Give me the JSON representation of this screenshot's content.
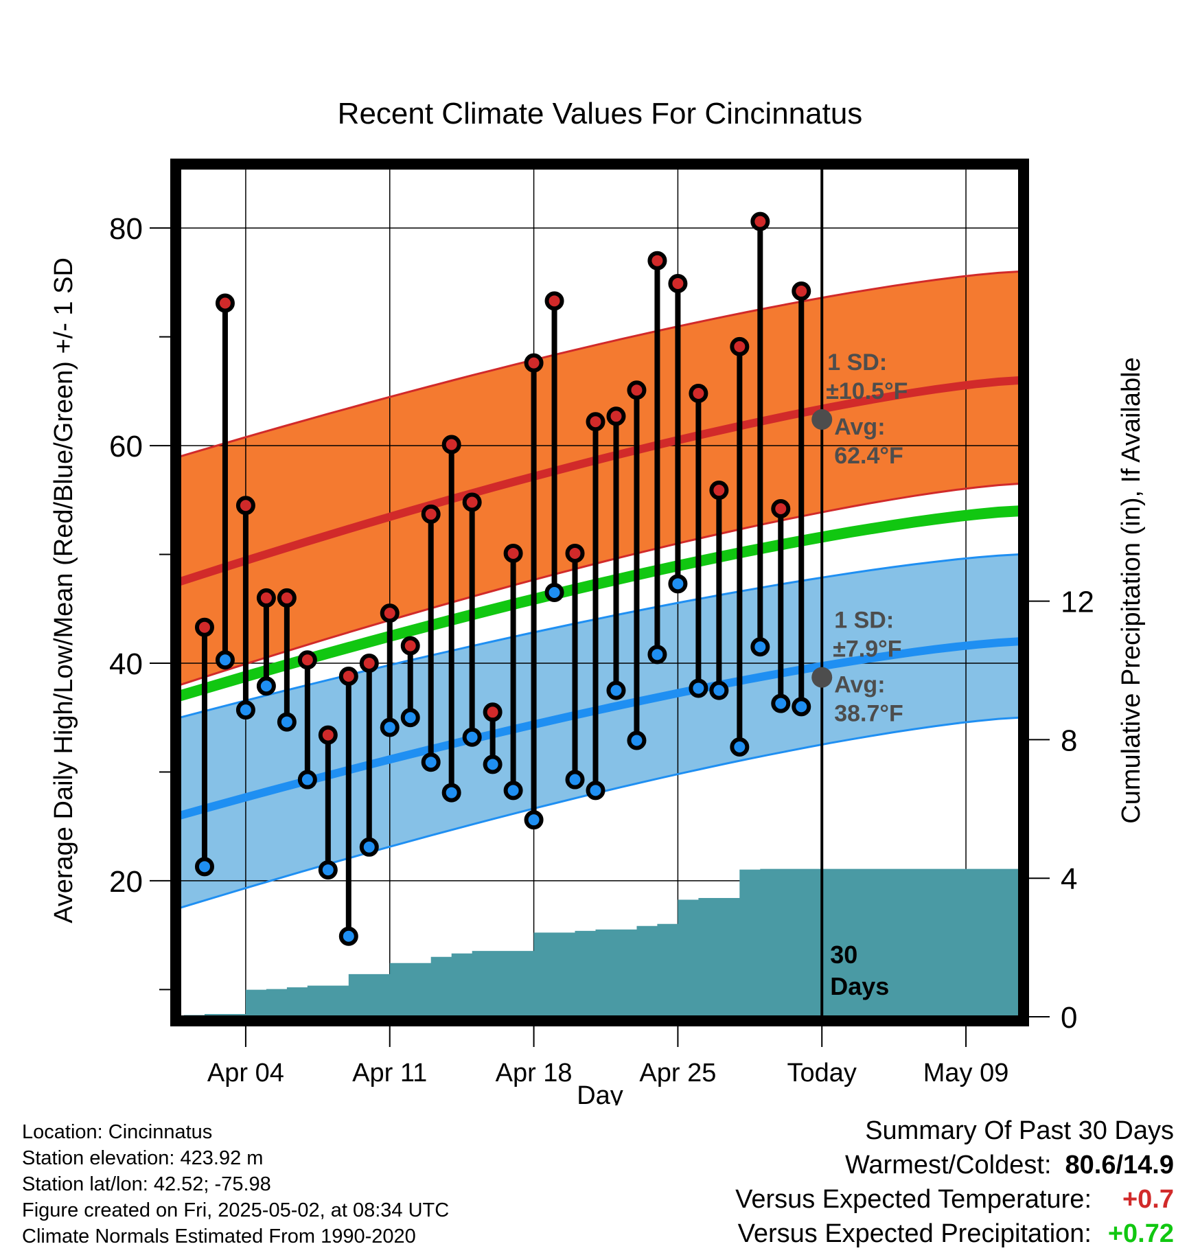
{
  "chart_data": {
    "type": "line",
    "title": "Recent Climate Values For Cincinnatus",
    "xlabel": "Day",
    "ylabel_left": "Average Daily High/Low/Mean (Red/Blue/Green) +/- 1 SD",
    "ylabel_right": "Cumulative Precipitation (in), If Available",
    "x_tick_labels": [
      "Apr 04",
      "Apr 11",
      "Apr 18",
      "Apr 25",
      "Today",
      "May 09"
    ],
    "x_tick_days": [
      4,
      11,
      18,
      25,
      32,
      39
    ],
    "y_left_ticks": [
      20,
      40,
      60,
      80
    ],
    "y_right_ticks": [
      0,
      4,
      8,
      12
    ],
    "xlim": [
      0.8,
      41.6
    ],
    "ylim_left": [
      7.5,
      85.5
    ],
    "ylim_right": [
      0,
      24.5
    ],
    "grid": true,
    "today_day": 32,
    "today_label": "30 Days",
    "normals": {
      "high_mean": {
        "start": 47.5,
        "end": 66.0
      },
      "high_upper": {
        "start": 59.0,
        "end": 76.0
      },
      "high_lower": {
        "start": 38.0,
        "end": 56.5
      },
      "mean": {
        "start": 37.0,
        "end": 54.0
      },
      "low_mean": {
        "start": 26.0,
        "end": 42.0
      },
      "low_upper": {
        "start": 35.0,
        "end": 50.0
      },
      "low_lower": {
        "start": 17.5,
        "end": 35.0
      }
    },
    "series": [
      {
        "key": "high",
        "days": [
          2,
          3,
          4,
          5,
          6,
          7,
          8,
          9,
          10,
          11,
          12,
          13,
          14,
          15,
          16,
          17,
          18,
          19,
          20,
          21,
          22,
          23,
          24,
          25,
          26,
          27,
          28,
          29,
          30,
          31
        ],
        "values": [
          43.3,
          73.1,
          54.5,
          46.0,
          46.0,
          40.3,
          33.4,
          38.8,
          40.0,
          44.6,
          41.6,
          53.7,
          60.1,
          54.8,
          35.5,
          50.1,
          67.6,
          73.3,
          50.1,
          62.2,
          62.7,
          65.1,
          77.0,
          74.9,
          64.8,
          55.9,
          69.1,
          80.6,
          54.2,
          74.2
        ]
      },
      {
        "key": "low",
        "days": [
          2,
          3,
          4,
          5,
          6,
          7,
          8,
          9,
          10,
          11,
          12,
          13,
          14,
          15,
          16,
          17,
          18,
          19,
          20,
          21,
          22,
          23,
          24,
          25,
          26,
          27,
          28,
          29,
          30,
          31
        ],
        "values": [
          21.3,
          40.3,
          35.7,
          37.9,
          34.6,
          29.3,
          21.0,
          14.9,
          23.1,
          34.1,
          35.0,
          30.9,
          28.1,
          33.2,
          30.7,
          28.3,
          25.6,
          46.5,
          29.3,
          28.3,
          37.5,
          32.9,
          40.8,
          47.3,
          37.7,
          37.5,
          32.3,
          41.5,
          36.3,
          36.0
        ]
      }
    ],
    "precip_cumulative": {
      "days": [
        1,
        2,
        3,
        4,
        5,
        6,
        7,
        8,
        9,
        10,
        11,
        12,
        13,
        14,
        15,
        16,
        17,
        18,
        19,
        20,
        21,
        22,
        23,
        24,
        25,
        26,
        27,
        28,
        29,
        30,
        31,
        32,
        41.6
      ],
      "values": [
        0.02,
        0.05,
        0.08,
        0.08,
        0.78,
        0.8,
        0.85,
        0.9,
        0.9,
        1.23,
        1.23,
        1.55,
        1.55,
        1.73,
        1.83,
        1.9,
        1.9,
        1.9,
        2.43,
        2.43,
        2.48,
        2.52,
        2.52,
        2.62,
        2.68,
        3.38,
        3.43,
        3.43,
        4.25,
        4.27,
        4.27,
        4.27,
        4.27
      ]
    },
    "annotations": {
      "high": {
        "sd": "±10.5°F",
        "avg": "62.4°F",
        "avg_value": 62.4
      },
      "low": {
        "sd": "±7.9°F",
        "avg": "38.7°F",
        "avg_value": 38.7
      },
      "sd_label": "1 SD:",
      "avg_label": "Avg:"
    },
    "colors": {
      "high_band": "#f47a30",
      "high_line": "#d12a2a",
      "low_band": "#86c1e7",
      "low_line": "#1f8ff2",
      "mean_line": "#11c711",
      "precip": "#4a9aa4",
      "high_marker": "#d12a2a",
      "low_marker": "#1f8ff2",
      "annotation": "#4d4d4d"
    }
  },
  "footer": {
    "location": "Location: Cincinnatus",
    "elevation": "Station elevation: 423.92 m",
    "latlon": "Station lat/lon: 42.52; -75.98",
    "created": "Figure created on Fri, 2025-05-02, at 08:34 UTC",
    "normals": "Climate Normals Estimated From 1990-2020"
  },
  "summary": {
    "heading": "Summary Of Past 30 Days",
    "warmest_label": "Warmest/Coldest:",
    "warmest_value": "80.6/14.9",
    "temp_label": "Versus Expected Temperature:",
    "temp_value": "+0.7",
    "temp_color": "#d12a2a",
    "precip_label": "Versus Expected Precipitation:",
    "precip_value": "+0.72",
    "precip_color": "#11c711"
  }
}
